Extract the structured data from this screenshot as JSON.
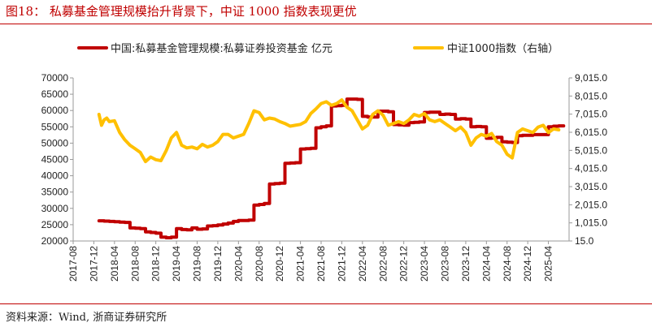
{
  "figure": {
    "title": "图18： 私募基金管理规模抬升背景下，中证 1000 指数表现更优",
    "source": "资料来源：Wind, 浙商证券研究所"
  },
  "colors": {
    "primary": "#c00000",
    "secondary": "#ffc000",
    "axis": "#999999",
    "rule": "#c00000"
  },
  "chart_data": {
    "type": "line",
    "title": "私募基金管理规模抬升背景下，中证 1000 指数表现更优",
    "x_tick_labels": [
      "2017-08",
      "2017-12",
      "2018-04",
      "2018-08",
      "2018-12",
      "2019-04",
      "2019-08",
      "2019-12",
      "2020-04",
      "2020-08",
      "2020-12",
      "2021-04",
      "2021-08",
      "2021-12",
      "2022-04",
      "2022-08",
      "2022-12",
      "2023-04",
      "2023-08",
      "2023-12",
      "2024-04",
      "2024-08",
      "2024-12",
      "2025-04"
    ],
    "x_start": "2017-08",
    "x_end": "2025-08",
    "y_left": {
      "min": 20000,
      "max": 70000,
      "ticks": [
        "20000",
        "25000",
        "30000",
        "35000",
        "40000",
        "45000",
        "50000",
        "55000",
        "60000",
        "65000",
        "70000"
      ],
      "unit": "亿元"
    },
    "y_right": {
      "min": 15.0,
      "max": 9015.0,
      "ticks": [
        "15.0",
        "1,015.0",
        "2,015.0",
        "3,015.0",
        "4,015.0",
        "5,015.0",
        "6,015.0",
        "7,015.0",
        "8,015.0",
        "9,015.0"
      ]
    },
    "legend": [
      "中国:私募基金管理规模:私募证券投资基金 亿元",
      "中证1000指数（右轴）"
    ],
    "series": [
      {
        "name": "中国:私募基金管理规模:私募证券投资基金 亿元",
        "axis": "left",
        "color": "#c00000",
        "step": true,
        "points": [
          [
            "2018-01",
            26200
          ],
          [
            "2018-02",
            26100
          ],
          [
            "2018-03",
            26000
          ],
          [
            "2018-04",
            25900
          ],
          [
            "2018-05",
            25800
          ],
          [
            "2018-06",
            25700
          ],
          [
            "2018-07",
            24000
          ],
          [
            "2018-08",
            23900
          ],
          [
            "2018-09",
            23800
          ],
          [
            "2018-10",
            22800
          ],
          [
            "2018-11",
            22600
          ],
          [
            "2018-12",
            22400
          ],
          [
            "2019-01",
            21200
          ],
          [
            "2019-02",
            21000
          ],
          [
            "2019-03",
            21200
          ],
          [
            "2019-04",
            23800
          ],
          [
            "2019-05",
            23500
          ],
          [
            "2019-06",
            23400
          ],
          [
            "2019-07",
            24000
          ],
          [
            "2019-08",
            23600
          ],
          [
            "2019-09",
            23700
          ],
          [
            "2019-10",
            24600
          ],
          [
            "2019-11",
            24700
          ],
          [
            "2019-12",
            24900
          ],
          [
            "2020-01",
            25200
          ],
          [
            "2020-02",
            25500
          ],
          [
            "2020-03",
            26000
          ],
          [
            "2020-04",
            26300
          ],
          [
            "2020-05",
            26300
          ],
          [
            "2020-06",
            26400
          ],
          [
            "2020-07",
            31000
          ],
          [
            "2020-08",
            31200
          ],
          [
            "2020-09",
            31500
          ],
          [
            "2020-10",
            37500
          ],
          [
            "2020-11",
            37600
          ],
          [
            "2020-12",
            37700
          ],
          [
            "2021-01",
            43800
          ],
          [
            "2021-02",
            43900
          ],
          [
            "2021-03",
            44000
          ],
          [
            "2021-04",
            48200
          ],
          [
            "2021-05",
            48300
          ],
          [
            "2021-06",
            48400
          ],
          [
            "2021-07",
            54700
          ],
          [
            "2021-08",
            55000
          ],
          [
            "2021-09",
            55300
          ],
          [
            "2021-10",
            61400
          ],
          [
            "2021-11",
            61500
          ],
          [
            "2021-12",
            61600
          ],
          [
            "2022-01",
            63500
          ],
          [
            "2022-02",
            63500
          ],
          [
            "2022-03",
            63400
          ],
          [
            "2022-04",
            58200
          ],
          [
            "2022-05",
            58000
          ],
          [
            "2022-06",
            58000
          ],
          [
            "2022-07",
            59800
          ],
          [
            "2022-08",
            59800
          ],
          [
            "2022-09",
            59600
          ],
          [
            "2022-10",
            55700
          ],
          [
            "2022-11",
            55600
          ],
          [
            "2022-12",
            55500
          ],
          [
            "2023-01",
            56300
          ],
          [
            "2023-02",
            56400
          ],
          [
            "2023-03",
            56500
          ],
          [
            "2023-04",
            59400
          ],
          [
            "2023-05",
            59500
          ],
          [
            "2023-06",
            59500
          ],
          [
            "2023-07",
            58800
          ],
          [
            "2023-08",
            58900
          ],
          [
            "2023-09",
            58800
          ],
          [
            "2023-10",
            57400
          ],
          [
            "2023-11",
            57500
          ],
          [
            "2023-12",
            57400
          ],
          [
            "2024-01",
            55000
          ],
          [
            "2024-02",
            55100
          ],
          [
            "2024-03",
            55000
          ],
          [
            "2024-04",
            51500
          ],
          [
            "2024-05",
            51600
          ],
          [
            "2024-06",
            51800
          ],
          [
            "2024-07",
            50400
          ],
          [
            "2024-08",
            50300
          ],
          [
            "2024-09",
            50200
          ],
          [
            "2024-10",
            52300
          ],
          [
            "2024-11",
            52400
          ],
          [
            "2024-12",
            52400
          ],
          [
            "2025-01",
            52600
          ],
          [
            "2025-02",
            52600
          ],
          [
            "2025-03",
            52600
          ],
          [
            "2025-04",
            55000
          ],
          [
            "2025-05",
            55200
          ],
          [
            "2025-06",
            55300
          ]
        ]
      },
      {
        "name": "中证1000指数（右轴）",
        "axis": "right",
        "color": "#ffc000",
        "step": false,
        "points": [
          [
            "2018-01",
            7000
          ],
          [
            "2018-01.5",
            6400
          ],
          [
            "2018-02",
            6700
          ],
          [
            "2018-02.5",
            6800
          ],
          [
            "2018-03",
            6600
          ],
          [
            "2018-04",
            6650
          ],
          [
            "2018-05",
            6000
          ],
          [
            "2018-06",
            5600
          ],
          [
            "2018-07",
            5300
          ],
          [
            "2018-08",
            5100
          ],
          [
            "2018-09",
            4900
          ],
          [
            "2018-10",
            4400
          ],
          [
            "2018-11",
            4650
          ],
          [
            "2018-12",
            4500
          ],
          [
            "2019-01",
            4450
          ],
          [
            "2019-02",
            5000
          ],
          [
            "2019-03",
            5700
          ],
          [
            "2019-04",
            6000
          ],
          [
            "2019-05",
            5300
          ],
          [
            "2019-06",
            5150
          ],
          [
            "2019-07",
            5200
          ],
          [
            "2019-08",
            5100
          ],
          [
            "2019-09",
            5350
          ],
          [
            "2019-10",
            5200
          ],
          [
            "2019-11",
            5300
          ],
          [
            "2019-12",
            5500
          ],
          [
            "2020-01",
            5900
          ],
          [
            "2020-02",
            5900
          ],
          [
            "2020-03",
            5700
          ],
          [
            "2020-04",
            5800
          ],
          [
            "2020-05",
            5900
          ],
          [
            "2020-06",
            6500
          ],
          [
            "2020-07",
            7200
          ],
          [
            "2020-08",
            7100
          ],
          [
            "2020-09",
            6700
          ],
          [
            "2020-10",
            6800
          ],
          [
            "2020-11",
            6750
          ],
          [
            "2020-12",
            6600
          ],
          [
            "2021-01",
            6500
          ],
          [
            "2021-02",
            6350
          ],
          [
            "2021-03",
            6400
          ],
          [
            "2021-04",
            6450
          ],
          [
            "2021-05",
            6600
          ],
          [
            "2021-06",
            7050
          ],
          [
            "2021-07",
            7300
          ],
          [
            "2021-08",
            7600
          ],
          [
            "2021-09",
            7700
          ],
          [
            "2021-10",
            7500
          ],
          [
            "2021-11",
            7600
          ],
          [
            "2021-12",
            7800
          ],
          [
            "2022-01",
            7400
          ],
          [
            "2022-02",
            7200
          ],
          [
            "2022-03",
            6700
          ],
          [
            "2022-04",
            6200
          ],
          [
            "2022-05",
            6400
          ],
          [
            "2022-06",
            7000
          ],
          [
            "2022-07",
            7200
          ],
          [
            "2022-08",
            6950
          ],
          [
            "2022-09",
            6400
          ],
          [
            "2022-10",
            6500
          ],
          [
            "2022-11",
            6600
          ],
          [
            "2022-12",
            6500
          ],
          [
            "2023-01",
            6700
          ],
          [
            "2023-02",
            7000
          ],
          [
            "2023-03",
            6900
          ],
          [
            "2023-04",
            7050
          ],
          [
            "2023-05",
            6700
          ],
          [
            "2023-06",
            6600
          ],
          [
            "2023-07",
            6700
          ],
          [
            "2023-08",
            6500
          ],
          [
            "2023-09",
            6300
          ],
          [
            "2023-10",
            6100
          ],
          [
            "2023-11",
            6300
          ],
          [
            "2023-12",
            6000
          ],
          [
            "2024-01",
            5300
          ],
          [
            "2024-02",
            5700
          ],
          [
            "2024-03",
            5900
          ],
          [
            "2024-04",
            5800
          ],
          [
            "2024-05",
            5950
          ],
          [
            "2024-06",
            5500
          ],
          [
            "2024-07",
            5300
          ],
          [
            "2024-08",
            4800
          ],
          [
            "2024-09",
            4600
          ],
          [
            "2024-10",
            6000
          ],
          [
            "2024-11",
            6200
          ],
          [
            "2024-12",
            6100
          ],
          [
            "2025-01",
            6000
          ],
          [
            "2025-02",
            6300
          ],
          [
            "2025-03",
            6400
          ],
          [
            "2025-04",
            6000
          ],
          [
            "2025-05",
            6200
          ],
          [
            "2025-06",
            6150
          ]
        ]
      }
    ]
  }
}
